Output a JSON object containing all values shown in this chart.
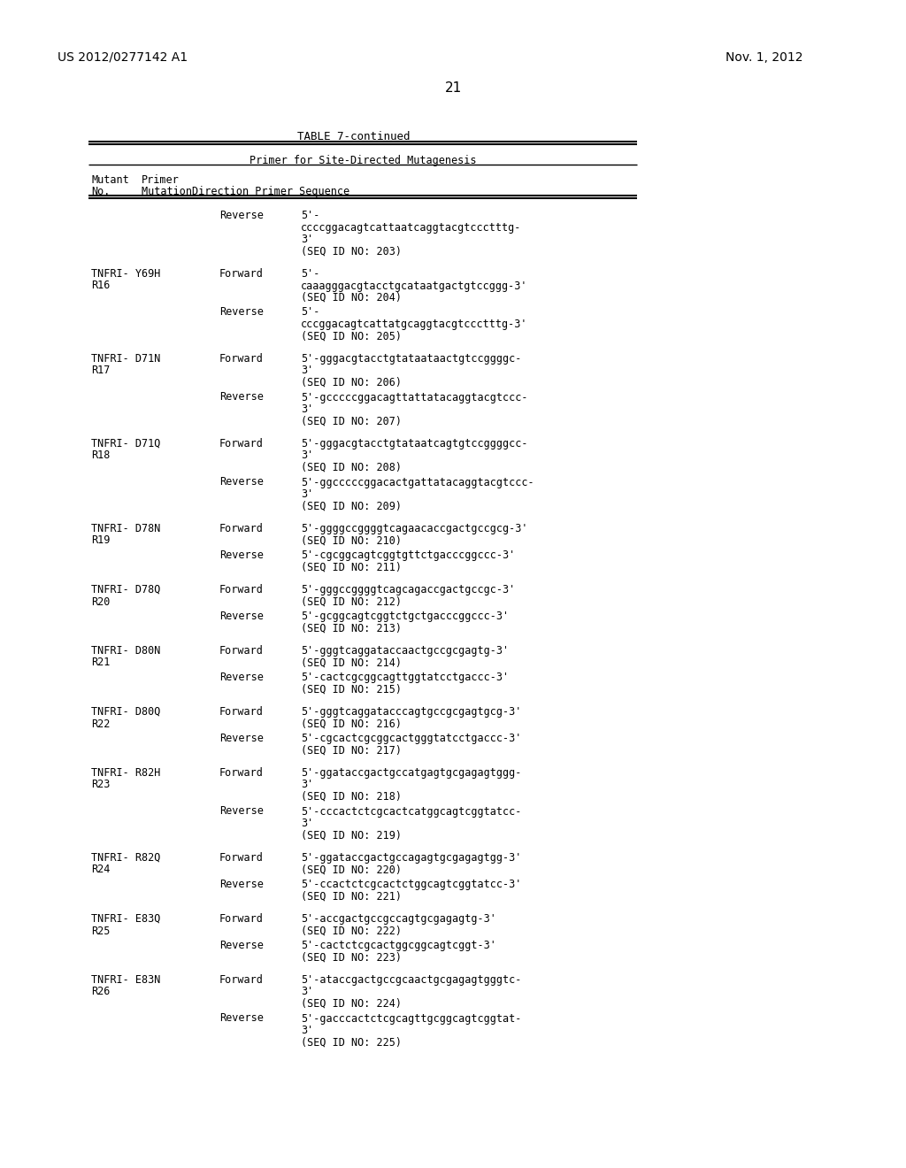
{
  "header_left": "US 2012/0277142 A1",
  "header_right": "Nov. 1, 2012",
  "page_number": "21",
  "table_title": "TABLE 7-continued",
  "col_header1": "Primer for Site-Directed Mutagenesis",
  "background_color": "#ffffff",
  "text_color": "#000000"
}
